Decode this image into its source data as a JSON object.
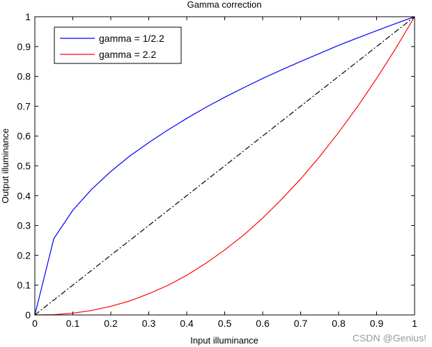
{
  "chart_data": {
    "type": "line",
    "title": "Gamma correction",
    "xlabel": "Input illuminance",
    "ylabel": "Output illuminance",
    "xlim": [
      0,
      1
    ],
    "ylim": [
      0,
      1
    ],
    "xticks": [
      "0",
      "0.1",
      "0.2",
      "0.3",
      "0.4",
      "0.5",
      "0.6",
      "0.7",
      "0.8",
      "0.9",
      "1"
    ],
    "yticks": [
      "0",
      "0.1",
      "0.2",
      "0.3",
      "0.4",
      "0.5",
      "0.6",
      "0.7",
      "0.8",
      "0.9",
      "1"
    ],
    "grid": false,
    "legend_position": "top-left",
    "x": [
      0,
      0.05,
      0.1,
      0.15,
      0.2,
      0.25,
      0.3,
      0.35,
      0.4,
      0.45,
      0.5,
      0.55,
      0.6,
      0.65,
      0.7,
      0.75,
      0.8,
      0.85,
      0.9,
      0.95,
      1
    ],
    "series": [
      {
        "name": "gamma = 1/2.2",
        "color": "#0000ff",
        "style": "solid",
        "values": [
          0,
          0.256,
          0.351,
          0.422,
          0.481,
          0.533,
          0.578,
          0.62,
          0.659,
          0.696,
          0.73,
          0.762,
          0.793,
          0.822,
          0.85,
          0.877,
          0.904,
          0.929,
          0.953,
          0.977,
          1
        ]
      },
      {
        "name": "gamma = 2.2",
        "color": "#ff0000",
        "style": "solid",
        "values": [
          0,
          0.001,
          0.006,
          0.015,
          0.029,
          0.047,
          0.071,
          0.099,
          0.133,
          0.173,
          0.218,
          0.268,
          0.325,
          0.388,
          0.456,
          0.531,
          0.612,
          0.699,
          0.793,
          0.893,
          1
        ]
      },
      {
        "color": "#000000",
        "style": "dash-dot",
        "values": [
          0,
          0.05,
          0.1,
          0.15,
          0.2,
          0.25,
          0.3,
          0.35,
          0.4,
          0.45,
          0.5,
          0.55,
          0.6,
          0.65,
          0.7,
          0.75,
          0.8,
          0.85,
          0.9,
          0.95,
          1
        ]
      }
    ]
  },
  "watermark": "CSDN @Genius!"
}
